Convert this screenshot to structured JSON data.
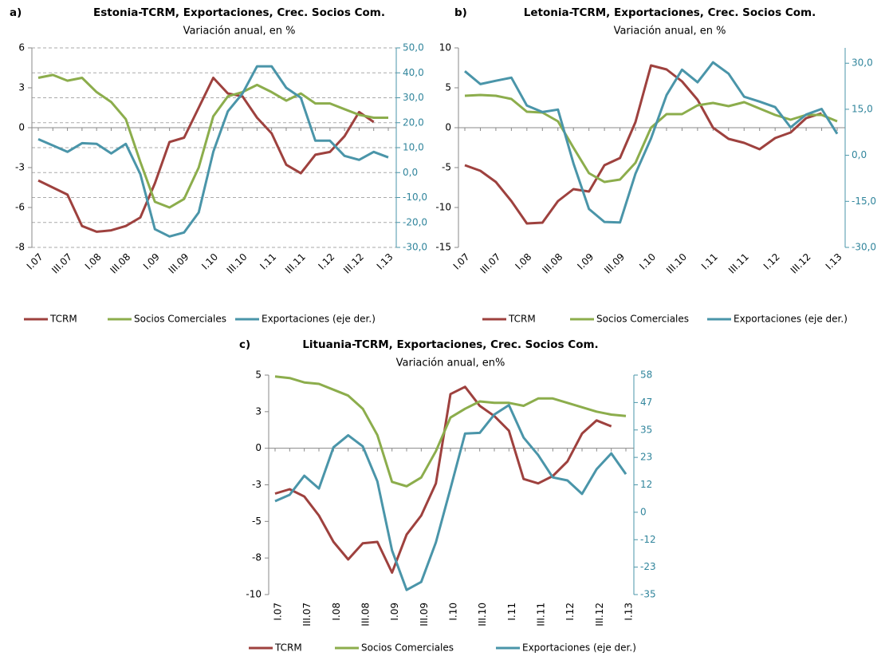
{
  "chart_data": [
    {
      "type": "line",
      "panel_label": "a)",
      "title": "Estonia-TCRM, Exportaciones, Crec. Socios Com.",
      "subtitle": "Variación anual, en %",
      "categories": [
        "I.07",
        null,
        "III.07",
        null,
        "I.08",
        null,
        "III.08",
        null,
        "I.09",
        null,
        "III.09",
        null,
        "I.10",
        null,
        "III.10",
        null,
        "I.11",
        null,
        "III.11",
        null,
        "I.12",
        null,
        "III.12",
        null,
        "I.13"
      ],
      "series": [
        {
          "name": "TCRM",
          "color": "#9e413e",
          "values": [
            -3.7,
            -4.2,
            -4.7,
            -6.9,
            -7.3,
            -7.2,
            -6.9,
            -6.3,
            -3.9,
            -1.0,
            -0.7,
            1.4,
            3.5,
            2.4,
            2.2,
            0.7,
            -0.4,
            -2.6,
            -3.2,
            -1.9,
            -1.7,
            -0.6,
            1.1,
            0.4,
            null
          ]
        },
        {
          "name": "Socios Comerciales",
          "color": "#8cad4c",
          "values": [
            3.5,
            3.7,
            3.3,
            3.5,
            2.5,
            1.8,
            0.6,
            -2.4,
            -5.2,
            -5.6,
            -5.0,
            -2.8,
            0.8,
            2.2,
            2.5,
            3.0,
            2.5,
            1.9,
            2.4,
            1.7,
            1.7,
            1.3,
            0.9,
            0.7,
            0.7
          ]
        },
        {
          "name": "Exportaciones (eje der.)",
          "color": "#4a95a9",
          "axis": "y2",
          "values": [
            13.4,
            10.9,
            8.3,
            11.8,
            11.5,
            7.7,
            11.5,
            -0.6,
            -22.7,
            -25.6,
            -24.0,
            -16.0,
            8.3,
            24.6,
            31.7,
            42.6,
            42.6,
            34.0,
            30.0,
            12.8,
            12.8,
            6.7,
            5.1,
            8.3,
            6.1
          ]
        }
      ],
      "ylim": [
        -8.4,
        5.6
      ],
      "yticks": [
        {
          "value": 5.6,
          "label": "6"
        },
        {
          "value": 2.8,
          "label": "3"
        },
        0,
        {
          "value": -2.8,
          "label": "-3"
        },
        {
          "value": -5.6,
          "label": "-6"
        },
        {
          "value": -8.4,
          "label": "-8"
        }
      ],
      "y2lim": [
        -30,
        50
      ],
      "y2ticks": [
        {
          "value": 50,
          "label": "50,0"
        },
        {
          "value": 40,
          "label": "40,0"
        },
        {
          "value": 30,
          "label": "30,0"
        },
        {
          "value": 20,
          "label": "20,0"
        },
        {
          "value": 10,
          "label": "10,0"
        },
        {
          "value": 0,
          "label": "0,0"
        },
        {
          "value": -10,
          "label": "-10,0"
        },
        {
          "value": -20,
          "label": "-20,0"
        },
        {
          "value": -30,
          "label": "-30,0"
        }
      ],
      "grid": true
    },
    {
      "type": "line",
      "panel_label": "b)",
      "title": "Letonia-TCRM, Exportaciones, Crec. Socios Com.",
      "subtitle": "Variación anual, en %",
      "categories": [
        "I.07",
        null,
        "III.07",
        null,
        "I.08",
        null,
        "III.08",
        null,
        "I.09",
        null,
        "III.09",
        null,
        "I.10",
        null,
        "III.10",
        null,
        "I.11",
        null,
        "III.11",
        null,
        "I.12",
        null,
        "III.12",
        null,
        "I.13"
      ],
      "series": [
        {
          "name": "TCRM",
          "color": "#9e413e",
          "values": [
            -4.7,
            -5.4,
            -6.8,
            -9.2,
            -12.0,
            -11.9,
            -9.2,
            -7.7,
            -8.0,
            -4.7,
            -3.8,
            0.7,
            7.8,
            7.3,
            5.8,
            3.5,
            0.0,
            -1.4,
            -1.9,
            -2.7,
            -1.3,
            -0.6,
            1.2,
            1.8,
            null
          ]
        },
        {
          "name": "Socios Comerciales",
          "color": "#8cad4c",
          "values": [
            4.0,
            4.1,
            4.0,
            3.6,
            2.0,
            1.9,
            0.8,
            -2.5,
            -5.7,
            -6.8,
            -6.5,
            -4.4,
            0.0,
            1.7,
            1.7,
            2.8,
            3.1,
            2.7,
            3.2,
            2.4,
            1.6,
            1.0,
            1.6,
            1.6,
            0.8
          ]
        },
        {
          "name": "Exportaciones (eje der.)",
          "color": "#4a95a9",
          "axis": "y2",
          "values": [
            27.4,
            23.2,
            24.3,
            25.3,
            16.2,
            14.1,
            14.9,
            -2.6,
            -17.5,
            -21.7,
            -21.9,
            -6.0,
            5.5,
            19.6,
            27.9,
            23.8,
            30.3,
            26.6,
            19.1,
            17.5,
            15.7,
            9.1,
            13.3,
            15.1,
            7.0
          ]
        }
      ],
      "ylim": [
        -15,
        10
      ],
      "yticks": [
        10,
        5,
        0,
        -5,
        -10,
        -15
      ],
      "y2lim": [
        -30,
        35
      ],
      "y2ticks": [
        {
          "value": 30,
          "label": "30,0"
        },
        {
          "value": 15,
          "label": "15,0"
        },
        {
          "value": 0,
          "label": "0,0"
        },
        {
          "value": -15,
          "label": "-15,0"
        },
        {
          "value": -30,
          "label": "-30,0"
        }
      ],
      "grid": false
    },
    {
      "type": "line",
      "panel_label": "c)",
      "title": "Lituania-TCRM, Exportaciones, Crec. Socios Com.",
      "subtitle": "Variación anual, en%",
      "categories": [
        "I.07",
        null,
        "III.07",
        null,
        "I.08",
        null,
        "III.08",
        null,
        "I.09",
        null,
        "III.09",
        null,
        "I.10",
        null,
        "III.10",
        null,
        "I.11",
        null,
        "III.11",
        null,
        "I.12",
        null,
        "III.12",
        null,
        "I.13"
      ],
      "series": [
        {
          "name": "TCRM",
          "color": "#9e413e",
          "values": [
            -3.1,
            -2.8,
            -3.3,
            -4.6,
            -6.4,
            -7.6,
            -6.5,
            -6.4,
            -8.5,
            -5.9,
            -4.6,
            -2.4,
            3.7,
            4.2,
            2.9,
            2.2,
            1.2,
            -2.1,
            -2.4,
            -1.9,
            -0.9,
            1.0,
            1.9,
            1.5,
            null
          ]
        },
        {
          "name": "Socios Comerciales",
          "color": "#8cad4c",
          "values": [
            4.9,
            4.8,
            4.5,
            4.4,
            4.0,
            3.6,
            2.7,
            0.9,
            -2.3,
            -2.6,
            -2.0,
            -0.2,
            2.1,
            2.7,
            3.2,
            3.1,
            3.1,
            2.9,
            3.4,
            3.4,
            3.1,
            2.8,
            2.5,
            2.3,
            2.2
          ]
        },
        {
          "name": "Exportaciones (eje der.)",
          "color": "#4a95a9",
          "axis": "y2",
          "values": [
            4.7,
            7.4,
            15.5,
            10.1,
            27.6,
            32.7,
            28.0,
            13.1,
            -16.2,
            -33.0,
            -29.6,
            -12.8,
            10.1,
            33.4,
            33.7,
            41.5,
            45.5,
            31.7,
            24.3,
            14.8,
            13.5,
            7.8,
            18.3,
            25.0,
            16.2
          ]
        }
      ],
      "ylim": [
        -10,
        5
      ],
      "yticks": [
        5,
        {
          "value": 2.5,
          "label": "3"
        },
        0,
        {
          "value": -2.5,
          "label": "-3"
        },
        -5,
        {
          "value": -7.5,
          "label": "-8"
        },
        -10
      ],
      "y2lim": [
        -34.95,
        58.25
      ],
      "y2ticks": [
        {
          "value": 58.25,
          "label": "58"
        },
        {
          "value": 46.6,
          "label": "47"
        },
        {
          "value": 34.95,
          "label": "35"
        },
        {
          "value": 23.3,
          "label": "23"
        },
        {
          "value": 11.65,
          "label": "12"
        },
        0,
        {
          "value": -11.65,
          "label": "-12"
        },
        {
          "value": -23.3,
          "label": "-23"
        },
        {
          "value": -34.95,
          "label": "-35"
        }
      ],
      "grid": false
    }
  ]
}
